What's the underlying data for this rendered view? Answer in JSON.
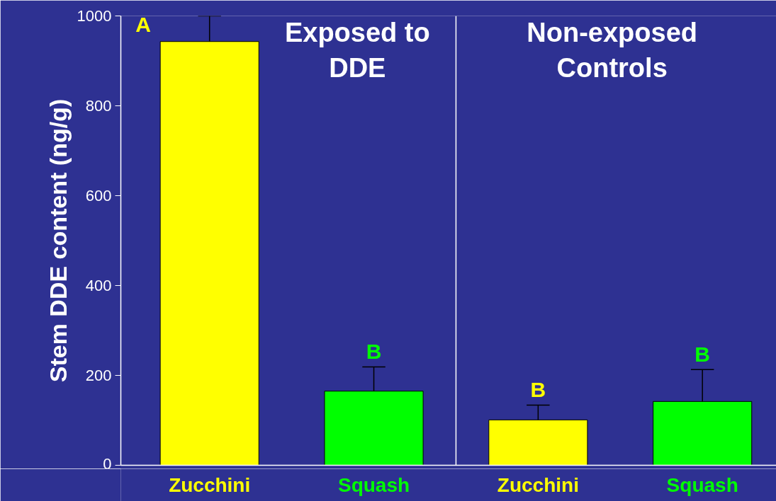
{
  "chart_data": {
    "type": "bar",
    "ylabel": "Stem DDE content (ng/g)",
    "categories": [
      "Zucchini",
      "Squash",
      "Zucchini",
      "Squash"
    ],
    "values": [
      943,
      165,
      101,
      142
    ],
    "colors": [
      "#ffff00",
      "#00ff00",
      "#ffff00",
      "#00ff00"
    ],
    "errors": [
      [
        943,
        1000
      ],
      [
        165,
        219
      ],
      [
        101,
        134
      ],
      [
        142,
        213
      ]
    ],
    "value_labels": [
      "A",
      "B",
      "B",
      "B"
    ],
    "annotations": [
      "Exposed to DDE",
      "Non-exposed Controls"
    ],
    "ylim": [
      0,
      1000
    ],
    "yticks": [
      0,
      200,
      400,
      600,
      800,
      1000
    ],
    "grid": false
  }
}
